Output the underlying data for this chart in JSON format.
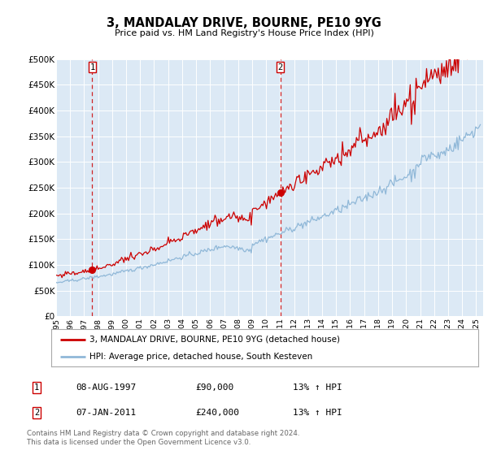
{
  "title": "3, MANDALAY DRIVE, BOURNE, PE10 9YG",
  "subtitle": "Price paid vs. HM Land Registry's House Price Index (HPI)",
  "background_color": "#dce9f5",
  "outer_bg_color": "#ffffff",
  "hpi_color": "#90b8d8",
  "price_color": "#cc0000",
  "marker_color": "#cc0000",
  "dashed_line_color": "#cc0000",
  "ylim": [
    0,
    500000
  ],
  "yticks": [
    0,
    50000,
    100000,
    150000,
    200000,
    250000,
    300000,
    350000,
    400000,
    450000,
    500000
  ],
  "ytick_labels": [
    "£0",
    "£50K",
    "£100K",
    "£150K",
    "£200K",
    "£250K",
    "£300K",
    "£350K",
    "£400K",
    "£450K",
    "£500K"
  ],
  "xlim_start": 1995.0,
  "xlim_end": 2025.5,
  "xticks": [
    1995,
    1996,
    1997,
    1998,
    1999,
    2000,
    2001,
    2002,
    2003,
    2004,
    2005,
    2006,
    2007,
    2008,
    2009,
    2010,
    2011,
    2012,
    2013,
    2014,
    2015,
    2016,
    2017,
    2018,
    2019,
    2020,
    2021,
    2022,
    2023,
    2024,
    2025
  ],
  "sale1_x": 1997.58,
  "sale1_y": 90000,
  "sale1_label": "1",
  "sale1_date": "08-AUG-1997",
  "sale1_price": "£90,000",
  "sale1_hpi": "13% ↑ HPI",
  "sale2_x": 2011.02,
  "sale2_y": 240000,
  "sale2_label": "2",
  "sale2_date": "07-JAN-2011",
  "sale2_price": "£240,000",
  "sale2_hpi": "13% ↑ HPI",
  "legend_line1": "3, MANDALAY DRIVE, BOURNE, PE10 9YG (detached house)",
  "legend_line2": "HPI: Average price, detached house, South Kesteven",
  "footnote": "Contains HM Land Registry data © Crown copyright and database right 2024.\nThis data is licensed under the Open Government Licence v3.0."
}
